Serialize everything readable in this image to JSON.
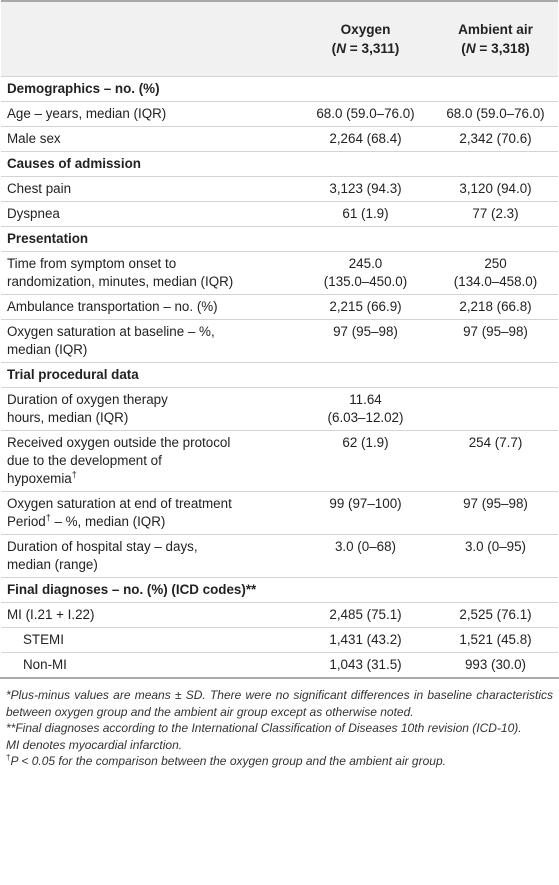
{
  "header": {
    "col1": "",
    "oxygen_label": "Oxygen",
    "oxygen_n": "(N = 3,311)",
    "ambient_label": "Ambient air",
    "ambient_n": "(N = 3,318)"
  },
  "rows": [
    {
      "type": "section",
      "label": "Demographics – no. (%)"
    },
    {
      "type": "row",
      "label": "Age – years, median (IQR)",
      "oxygen": "68.0 (59.0–76.0)",
      "ambient": "68.0 (59.0–76.0)"
    },
    {
      "type": "row",
      "label": "Male sex",
      "oxygen": "2,264 (68.4)",
      "ambient": "2,342 (70.6)"
    },
    {
      "type": "section",
      "label": "Causes of admission"
    },
    {
      "type": "row",
      "label": "Chest pain",
      "oxygen": "3,123 (94.3)",
      "ambient": "3,120 (94.0)"
    },
    {
      "type": "row",
      "label": "Dyspnea",
      "oxygen": "61 (1.9)",
      "ambient": "77 (2.3)"
    },
    {
      "type": "section",
      "label": "Presentation"
    },
    {
      "type": "row2",
      "label1": "Time from symptom onset to",
      "label2": "randomization, minutes, median (IQR)",
      "oxygen1": "245.0",
      "oxygen2": "(135.0–450.0)",
      "ambient1": "250",
      "ambient2": "(134.0–458.0)"
    },
    {
      "type": "row",
      "label": "Ambulance transportation – no. (%)",
      "oxygen": "2,215 (66.9)",
      "ambient": "2,218 (66.8)"
    },
    {
      "type": "row2",
      "label1": "Oxygen saturation at baseline – %,",
      "label2": "median (IQR)",
      "oxygen1": "97 (95–98)",
      "oxygen2": "",
      "ambient1": "97 (95–98)",
      "ambient2": ""
    },
    {
      "type": "section",
      "label": "Trial procedural data"
    },
    {
      "type": "row2",
      "label1": "Duration of oxygen therapy",
      "label2": "hours, median (IQR)",
      "oxygen1": "11.64",
      "oxygen2": "(6.03–12.02)",
      "ambient1": "",
      "ambient2": ""
    },
    {
      "type": "row3",
      "label1": "Received oxygen outside the protocol",
      "label2": "due to the development of",
      "label3": "hypoxemia",
      "oxygen1": "62 (1.9)",
      "ambient1": "254 (7.7)"
    },
    {
      "type": "row2",
      "label1": "Oxygen saturation at end of treatment",
      "label2": "Period",
      "label2b": " – %, median (IQR)",
      "oxygen1": "99 (97–100)",
      "oxygen2": "",
      "ambient1": "97 (95–98)",
      "ambient2": ""
    },
    {
      "type": "row2",
      "label1": "Duration of hospital stay – days,",
      "label2": "median (range)",
      "oxygen1": "3.0 (0–68)",
      "oxygen2": "",
      "ambient1": "3.0 (0–95)",
      "ambient2": ""
    },
    {
      "type": "section",
      "label": "Final diagnoses – no. (%) (ICD codes)**"
    },
    {
      "type": "row",
      "label": "MI (I.21 + I.22)",
      "oxygen": "2,485 (75.1)",
      "ambient": "2,525 (76.1)"
    },
    {
      "type": "indent",
      "label": "STEMI",
      "oxygen": "1,431 (43.2)",
      "ambient": "1,521 (45.8)"
    },
    {
      "type": "indent",
      "label": "Non-MI",
      "oxygen": "1,043 (31.5)",
      "ambient": "993 (30.0)"
    }
  ],
  "footnotes": {
    "n1": "*Plus-minus values are means ± SD. There were no significant differences in baseline characteristics between oxygen group and the ambient air group except as otherwise noted.",
    "n2": "**Final diagnoses according to the International Classification of Diseases 10th revision (ICD-10).",
    "n3": "MI denotes myocardial infarction.",
    "n4_mark": "†",
    "n4_p": "P",
    "n4_text": " < 0.05 for the comparison between the oxygen group and the ambient air group."
  },
  "symbols": {
    "dagger": "†"
  }
}
